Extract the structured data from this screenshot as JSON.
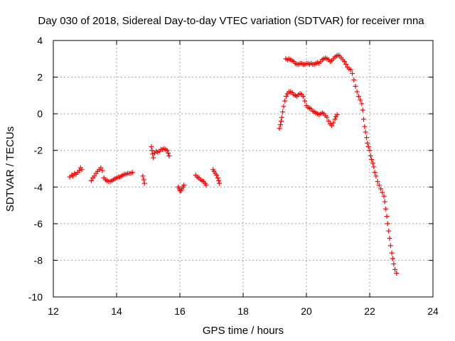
{
  "chart_data": {
    "type": "scatter",
    "title": "Day 030 of 2018, Sidereal Day-to-day VTEC variation (SDTVAR) for receiver rnna",
    "xlabel": "GPS time / hours",
    "ylabel": "SDTVAR / TECUs",
    "xlim": [
      12,
      24
    ],
    "ylim": [
      -10,
      4
    ],
    "xticks": [
      "12",
      "14",
      "16",
      "18",
      "20",
      "22",
      "24"
    ],
    "yticks": [
      "4",
      "2",
      "0",
      "-2",
      "-4",
      "-6",
      "-8",
      "-10"
    ],
    "grid": true,
    "marker": "plus",
    "color": "#ff0000",
    "series": [
      {
        "points": [
          [
            12.52,
            -3.45
          ],
          [
            12.58,
            -3.35
          ],
          [
            12.62,
            -3.4
          ],
          [
            12.67,
            -3.25
          ],
          [
            12.72,
            -3.3
          ],
          [
            12.77,
            -3.2
          ],
          [
            12.82,
            -3.1
          ],
          [
            12.86,
            -2.95
          ],
          [
            12.9,
            -3.05
          ],
          [
            13.2,
            -3.65
          ],
          [
            13.25,
            -3.5
          ],
          [
            13.3,
            -3.4
          ],
          [
            13.35,
            -3.25
          ],
          [
            13.4,
            -3.15
          ],
          [
            13.45,
            -3.05
          ],
          [
            13.5,
            -2.95
          ],
          [
            13.55,
            -3.1
          ],
          [
            13.6,
            -3.5
          ],
          [
            13.65,
            -3.6
          ],
          [
            13.7,
            -3.65
          ],
          [
            13.75,
            -3.7
          ],
          [
            13.8,
            -3.7
          ],
          [
            13.85,
            -3.65
          ],
          [
            13.9,
            -3.6
          ],
          [
            13.95,
            -3.55
          ],
          [
            14.0,
            -3.5
          ],
          [
            14.05,
            -3.45
          ],
          [
            14.1,
            -3.45
          ],
          [
            14.15,
            -3.4
          ],
          [
            14.2,
            -3.35
          ],
          [
            14.25,
            -3.3
          ],
          [
            14.3,
            -3.3
          ],
          [
            14.35,
            -3.25
          ],
          [
            14.4,
            -3.25
          ],
          [
            14.45,
            -3.25
          ],
          [
            14.5,
            -3.2
          ],
          [
            14.83,
            -3.4
          ],
          [
            14.86,
            -3.6
          ],
          [
            14.88,
            -3.8
          ],
          [
            15.1,
            -1.8
          ],
          [
            15.12,
            -2.0
          ],
          [
            15.14,
            -2.2
          ],
          [
            15.16,
            -2.4
          ],
          [
            15.2,
            -2.15
          ],
          [
            15.25,
            -2.05
          ],
          [
            15.3,
            -2.1
          ],
          [
            15.35,
            -2.05
          ],
          [
            15.4,
            -1.95
          ],
          [
            15.45,
            -1.95
          ],
          [
            15.5,
            -1.9
          ],
          [
            15.55,
            -1.95
          ],
          [
            15.6,
            -2.0
          ],
          [
            15.63,
            -2.15
          ],
          [
            15.66,
            -2.3
          ],
          [
            15.95,
            -4.0
          ],
          [
            15.98,
            -4.1
          ],
          [
            16.0,
            -4.2
          ],
          [
            16.03,
            -4.2
          ],
          [
            16.06,
            -4.1
          ],
          [
            16.1,
            -4.0
          ],
          [
            16.13,
            -3.9
          ],
          [
            16.5,
            -3.35
          ],
          [
            16.55,
            -3.45
          ],
          [
            16.6,
            -3.5
          ],
          [
            16.65,
            -3.6
          ],
          [
            16.7,
            -3.65
          ],
          [
            16.75,
            -3.7
          ],
          [
            16.8,
            -3.8
          ],
          [
            16.83,
            -3.9
          ],
          [
            17.05,
            -3.05
          ],
          [
            17.08,
            -3.15
          ],
          [
            17.12,
            -3.25
          ],
          [
            17.16,
            -3.35
          ],
          [
            17.2,
            -3.5
          ],
          [
            17.23,
            -3.65
          ],
          [
            17.25,
            -3.8
          ],
          [
            19.15,
            -0.8
          ],
          [
            19.18,
            -0.6
          ],
          [
            19.2,
            -0.4
          ],
          [
            19.22,
            -0.2
          ],
          [
            19.25,
            0.1
          ],
          [
            19.28,
            0.4
          ],
          [
            19.32,
            0.7
          ],
          [
            19.36,
            0.95
          ],
          [
            19.4,
            1.1
          ],
          [
            19.45,
            1.2
          ],
          [
            19.5,
            1.2
          ],
          [
            19.55,
            1.15
          ],
          [
            19.6,
            1.05
          ],
          [
            19.65,
            1.0
          ],
          [
            19.7,
            0.95
          ],
          [
            19.75,
            1.05
          ],
          [
            19.8,
            1.1
          ],
          [
            19.85,
            1.05
          ],
          [
            19.9,
            0.95
          ],
          [
            19.95,
            0.7
          ],
          [
            20.0,
            0.45
          ],
          [
            20.05,
            0.35
          ],
          [
            20.1,
            0.3
          ],
          [
            20.15,
            0.25
          ],
          [
            20.2,
            0.15
          ],
          [
            20.25,
            0.1
          ],
          [
            20.3,
            0.05
          ],
          [
            20.35,
            0.0
          ],
          [
            20.4,
            -0.05
          ],
          [
            20.45,
            0.0
          ],
          [
            20.5,
            0.05
          ],
          [
            20.55,
            0.0
          ],
          [
            20.6,
            -0.1
          ],
          [
            20.65,
            -0.2
          ],
          [
            20.7,
            -0.4
          ],
          [
            20.75,
            -0.55
          ],
          [
            20.8,
            -0.65
          ],
          [
            20.85,
            -0.5
          ],
          [
            20.9,
            -0.3
          ],
          [
            20.93,
            -0.15
          ],
          [
            20.97,
            -0.05
          ],
          [
            19.35,
            3.0
          ],
          [
            19.4,
            2.95
          ],
          [
            19.45,
            3.0
          ],
          [
            19.5,
            2.95
          ],
          [
            19.55,
            2.9
          ],
          [
            19.6,
            2.85
          ],
          [
            19.65,
            2.75
          ],
          [
            19.7,
            2.7
          ],
          [
            19.75,
            2.7
          ],
          [
            19.8,
            2.75
          ],
          [
            19.85,
            2.75
          ],
          [
            19.9,
            2.7
          ],
          [
            19.95,
            2.7
          ],
          [
            20.0,
            2.75
          ],
          [
            20.05,
            2.75
          ],
          [
            20.1,
            2.7
          ],
          [
            20.15,
            2.75
          ],
          [
            20.2,
            2.7
          ],
          [
            20.25,
            2.7
          ],
          [
            20.3,
            2.75
          ],
          [
            20.35,
            2.8
          ],
          [
            20.4,
            2.75
          ],
          [
            20.45,
            2.85
          ],
          [
            20.5,
            2.95
          ],
          [
            20.55,
            3.0
          ],
          [
            20.6,
            3.05
          ],
          [
            20.65,
            3.0
          ],
          [
            20.7,
            2.95
          ],
          [
            20.75,
            2.85
          ],
          [
            20.8,
            2.9
          ],
          [
            20.85,
            3.0
          ],
          [
            20.9,
            3.1
          ],
          [
            20.95,
            3.15
          ],
          [
            21.0,
            3.2
          ],
          [
            21.05,
            3.15
          ],
          [
            21.1,
            3.05
          ],
          [
            21.15,
            2.95
          ],
          [
            21.2,
            2.85
          ],
          [
            21.25,
            2.7
          ],
          [
            21.3,
            2.55
          ],
          [
            21.35,
            2.45
          ],
          [
            21.4,
            2.4
          ],
          [
            21.45,
            2.2
          ],
          [
            21.5,
            1.85
          ],
          [
            21.55,
            1.5
          ],
          [
            21.6,
            1.2
          ],
          [
            21.65,
            0.95
          ],
          [
            21.7,
            0.75
          ],
          [
            21.75,
            0.55
          ],
          [
            21.78,
            0.2
          ],
          [
            21.81,
            -0.3
          ],
          [
            21.84,
            -0.7
          ],
          [
            21.87,
            -1.0
          ],
          [
            21.9,
            -1.3
          ],
          [
            21.93,
            -1.6
          ],
          [
            21.96,
            -1.8
          ],
          [
            22.0,
            -2.0
          ],
          [
            22.03,
            -2.3
          ],
          [
            22.06,
            -2.5
          ],
          [
            22.1,
            -2.7
          ],
          [
            22.13,
            -2.9
          ],
          [
            22.16,
            -3.2
          ],
          [
            22.2,
            -3.4
          ],
          [
            22.25,
            -3.7
          ],
          [
            22.3,
            -3.9
          ],
          [
            22.35,
            -4.1
          ],
          [
            22.4,
            -4.3
          ],
          [
            22.45,
            -4.5
          ],
          [
            22.48,
            -4.8
          ],
          [
            22.51,
            -5.2
          ],
          [
            22.54,
            -5.6
          ],
          [
            22.57,
            -6.0
          ],
          [
            22.6,
            -6.4
          ],
          [
            22.63,
            -6.8
          ],
          [
            22.66,
            -7.2
          ],
          [
            22.7,
            -7.6
          ],
          [
            22.73,
            -7.9
          ],
          [
            22.76,
            -8.2
          ],
          [
            22.8,
            -8.5
          ],
          [
            22.85,
            -8.7
          ]
        ]
      }
    ]
  }
}
